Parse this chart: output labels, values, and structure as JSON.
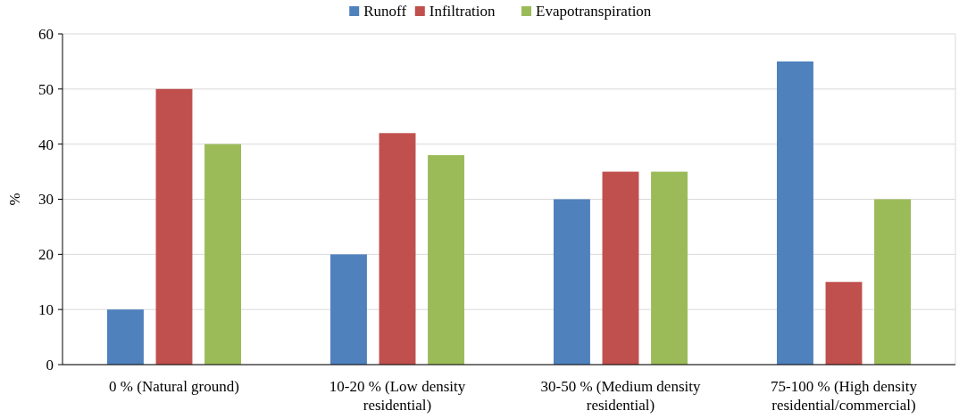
{
  "chart_data": {
    "type": "bar",
    "ylabel": "%",
    "categories": [
      "0 % (Natural ground)",
      "10-20 % (Low density residential)",
      "30-50 % (Medium density residential)",
      "75-100 % (High density residential/commercial)"
    ],
    "series": [
      {
        "name": "Runoff",
        "color": "#4f81bd",
        "values": [
          10,
          20,
          30,
          55
        ]
      },
      {
        "name": "Infiltration",
        "color": "#c0504d",
        "values": [
          50,
          42,
          35,
          15
        ]
      },
      {
        "name": "Evapotranspiration",
        "color": "#9bbb59",
        "values": [
          40,
          38,
          35,
          30
        ]
      }
    ],
    "ylim": [
      0,
      60
    ],
    "yticks": [
      0,
      10,
      20,
      30,
      40,
      50,
      60
    ],
    "grid": "y",
    "legend": "top"
  }
}
